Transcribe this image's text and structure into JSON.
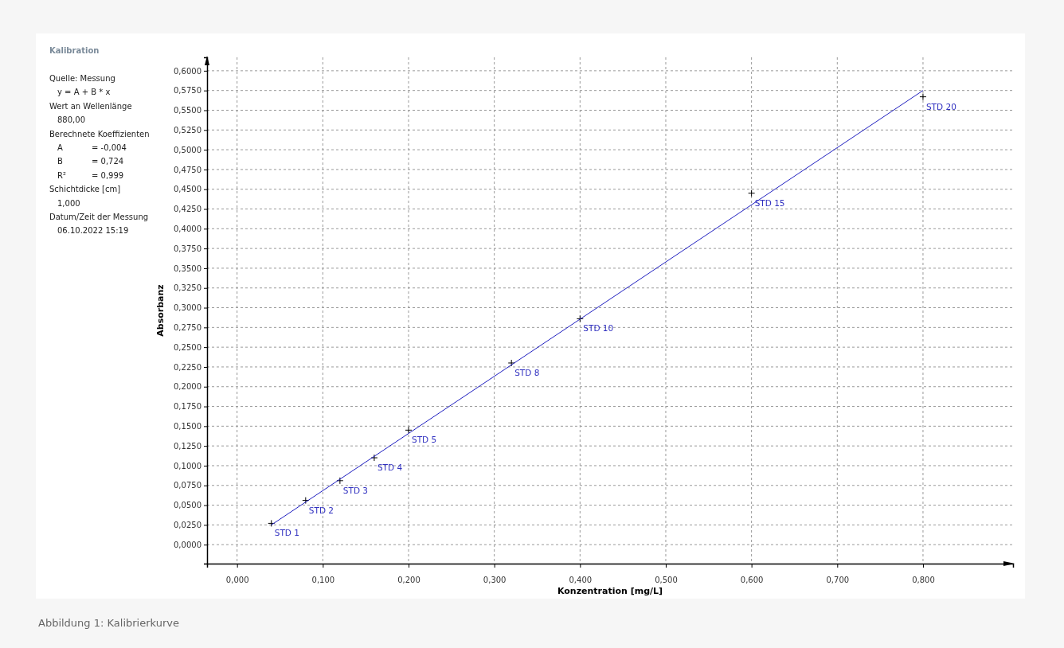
{
  "chart_data": {
    "type": "scatter",
    "title": "Kalibration",
    "xlabel": "Konzentration [mg/L]",
    "ylabel": "Absorbanz",
    "annotations": [
      "Quelle: Messung",
      "  y = A + B * x",
      "Wert an Wellenlänge",
      "  880,00",
      "Berechnete Koeffizienten",
      "  A\t= -0,004",
      "  B\t= 0,724",
      "  R²\t= 0,999",
      "Schichtdicke [cm]",
      "  1,000",
      "Datum/Zeit der Messung",
      "  06.10.2022 15:19",
      "Abbildung 1: Kalibrierkurve"
    ],
    "series": [
      {
        "color": "#000000",
        "marker": "cross",
        "x": [
          0.04,
          0.08,
          0.12,
          0.16,
          0.2,
          0.32,
          0.4,
          0.6,
          0.8
        ],
        "values": [
          0.027,
          0.056,
          0.081,
          0.11,
          0.145,
          0.23,
          0.286,
          0.445,
          0.567
        ],
        "value_labels": [
          "STD 1",
          "STD 2",
          "STD 3",
          "STD 4",
          "STD 5",
          "STD 8",
          "STD 10",
          "STD 15",
          "STD 20"
        ]
      },
      {
        "type": "line",
        "color": "#2020c0",
        "marker": "none",
        "x": [
          0.04,
          0.8
        ],
        "values": [
          0.025,
          0.575
        ]
      }
    ],
    "xlim": [
      -0.035,
      0.905
    ],
    "ylim": [
      -0.024,
      0.617
    ],
    "xticks": [
      {
        "value": 0,
        "label": "0,000"
      },
      {
        "value": 0.1,
        "label": "0,100"
      },
      {
        "value": 0.2,
        "label": "0,200"
      },
      {
        "value": 0.3,
        "label": "0,300"
      },
      {
        "value": 0.4,
        "label": "0,400"
      },
      {
        "value": 0.5,
        "label": "0,500"
      },
      {
        "value": 0.6,
        "label": "0,600"
      },
      {
        "value": 0.7,
        "label": "0,700"
      },
      {
        "value": 0.8,
        "label": "0,800"
      }
    ],
    "yticks": [
      {
        "value": 0,
        "label": "0,0000"
      },
      {
        "value": 0.025,
        "label": "0,0250"
      },
      {
        "value": 0.05,
        "label": "0,0500"
      },
      {
        "value": 0.075,
        "label": "0,0750"
      },
      {
        "value": 0.1,
        "label": "0,1000"
      },
      {
        "value": 0.125,
        "label": "0,1250"
      },
      {
        "value": 0.15,
        "label": "0,1500"
      },
      {
        "value": 0.175,
        "label": "0,1750"
      },
      {
        "value": 0.2,
        "label": "0,2000"
      },
      {
        "value": 0.225,
        "label": "0,2250"
      },
      {
        "value": 0.25,
        "label": "0,2500"
      },
      {
        "value": 0.275,
        "label": "0,2750"
      },
      {
        "value": 0.3,
        "label": "0,3000"
      },
      {
        "value": 0.325,
        "label": "0,3250"
      },
      {
        "value": 0.35,
        "label": "0,3500"
      },
      {
        "value": 0.375,
        "label": "0,3750"
      },
      {
        "value": 0.4,
        "label": "0,4000"
      },
      {
        "value": 0.425,
        "label": "0,4250"
      },
      {
        "value": 0.45,
        "label": "0,4500"
      },
      {
        "value": 0.475,
        "label": "0,4750"
      },
      {
        "value": 0.5,
        "label": "0,5000"
      },
      {
        "value": 0.525,
        "label": "0,5250"
      },
      {
        "value": 0.55,
        "label": "0,5500"
      },
      {
        "value": 0.575,
        "label": "0,5750"
      },
      {
        "value": 0.6,
        "label": "0,6000"
      }
    ],
    "grid": true
  }
}
